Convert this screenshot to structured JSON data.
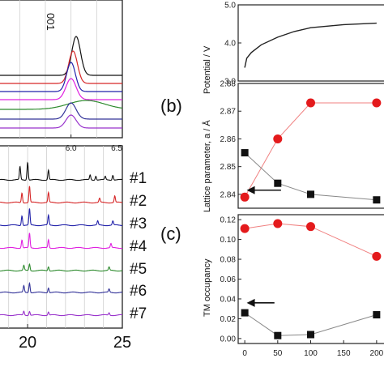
{
  "chart_data": [
    {
      "id": "xrd_top",
      "type": "line",
      "annotation": "001",
      "xlim": [
        5.3,
        6.5
      ],
      "xticks": [
        "6.0",
        "6.5"
      ],
      "xtick_values": [
        6.0,
        6.5
      ],
      "series": [
        {
          "color": "#111111",
          "center": 6.05,
          "height": 48,
          "width": 0.06
        },
        {
          "color": "#d62728",
          "center": 6.02,
          "height": 40,
          "width": 0.06
        },
        {
          "color": "#2222aa",
          "center": 6.0,
          "height": 36,
          "width": 0.06
        },
        {
          "color": "#e020e0",
          "center": 6.0,
          "height": 26,
          "width": 0.07
        },
        {
          "color": "#2e8b2e",
          "center": 6.15,
          "height": 11,
          "width": 0.25
        },
        {
          "color": "#333399",
          "center": 6.0,
          "height": 20,
          "width": 0.07
        },
        {
          "color": "#9933cc",
          "center": 6.0,
          "height": 16,
          "width": 0.07
        }
      ]
    },
    {
      "id": "xrd_bottom",
      "type": "line",
      "xlim": [
        18.5,
        25
      ],
      "xticks": [
        "20",
        "25"
      ],
      "xtick_values": [
        20,
        25
      ],
      "series": [
        {
          "name": "#1",
          "color": "#111111",
          "peaks": [
            [
              19.6,
              16
            ],
            [
              20.0,
              22
            ],
            [
              21.1,
              12
            ],
            [
              23.3,
              6
            ],
            [
              23.6,
              5
            ],
            [
              24.1,
              4
            ],
            [
              24.5,
              6
            ]
          ]
        },
        {
          "name": "#2",
          "color": "#d62728",
          "peaks": [
            [
              19.7,
              12
            ],
            [
              20.1,
              20
            ],
            [
              21.1,
              12
            ],
            [
              23.8,
              5
            ],
            [
              24.6,
              8
            ]
          ]
        },
        {
          "name": "#3",
          "color": "#2222aa",
          "peaks": [
            [
              19.7,
              12
            ],
            [
              20.1,
              20
            ],
            [
              21.1,
              12
            ],
            [
              23.7,
              5
            ],
            [
              24.5,
              5
            ]
          ]
        },
        {
          "name": "#4",
          "color": "#e020e0",
          "peaks": [
            [
              19.7,
              10
            ],
            [
              20.1,
              18
            ],
            [
              21.1,
              10
            ],
            [
              24.4,
              5
            ]
          ]
        },
        {
          "name": "#5",
          "color": "#2e8b2e",
          "peaks": [
            [
              19.8,
              6
            ],
            [
              20.1,
              8
            ],
            [
              21.1,
              5
            ],
            [
              24.3,
              4
            ]
          ]
        },
        {
          "name": "#6",
          "color": "#333399",
          "peaks": [
            [
              19.8,
              8
            ],
            [
              20.1,
              12
            ],
            [
              21.1,
              6
            ],
            [
              24.3,
              4
            ]
          ]
        },
        {
          "name": "#7",
          "color": "#9933cc",
          "peaks": [
            [
              19.8,
              5
            ],
            [
              20.1,
              5
            ],
            [
              21.1,
              4
            ],
            [
              24.3,
              3
            ]
          ]
        }
      ]
    },
    {
      "id": "potential",
      "type": "line",
      "ylabel": "Potential / V",
      "ylim": [
        3.0,
        5.0
      ],
      "yticks": [
        3.0,
        4.0,
        5.0
      ],
      "xlim": [
        -10,
        210
      ],
      "x": [
        0,
        3,
        10,
        25,
        50,
        75,
        100,
        150,
        200
      ],
      "y": [
        3.35,
        3.6,
        3.75,
        3.95,
        4.15,
        4.3,
        4.4,
        4.48,
        4.52
      ]
    },
    {
      "id": "lattice",
      "type": "scatter",
      "panel_label": "(b)",
      "ylabel": "Lattice parameter, a / Å",
      "ylim": [
        2.835,
        2.88
      ],
      "yticks": [
        2.84,
        2.85,
        2.86,
        2.87,
        2.88
      ],
      "xlim": [
        -10,
        210
      ],
      "series": [
        {
          "marker": "circle",
          "color": "#e41a1c",
          "x": [
            0,
            50,
            100,
            200
          ],
          "y": [
            2.839,
            2.86,
            2.873,
            2.873
          ]
        },
        {
          "marker": "square",
          "color": "#111111",
          "x": [
            0,
            50,
            100,
            200
          ],
          "y": [
            2.855,
            2.844,
            2.84,
            2.838
          ]
        }
      ],
      "arrow": {
        "from": [
          55,
          2.8415
        ],
        "to": [
          3,
          2.8415
        ]
      }
    },
    {
      "id": "tm_occupancy",
      "type": "scatter",
      "panel_label": "(c)",
      "ylabel": "TM occupancy",
      "ylim": [
        -0.005,
        0.125
      ],
      "yticks": [
        0.0,
        0.02,
        0.04,
        0.06,
        0.08,
        0.1,
        0.12
      ],
      "xlim": [
        -10,
        210
      ],
      "xticks": [
        0,
        50,
        100,
        150,
        200
      ],
      "series": [
        {
          "marker": "circle",
          "color": "#e41a1c",
          "x": [
            0,
            50,
            100,
            200
          ],
          "y": [
            0.111,
            0.116,
            0.113,
            0.083
          ]
        },
        {
          "marker": "square",
          "color": "#111111",
          "x": [
            0,
            50,
            100,
            200
          ],
          "y": [
            0.026,
            0.003,
            0.004,
            0.024
          ]
        }
      ],
      "arrow": {
        "from": [
          45,
          0.036
        ],
        "to": [
          3,
          0.036
        ]
      }
    }
  ]
}
